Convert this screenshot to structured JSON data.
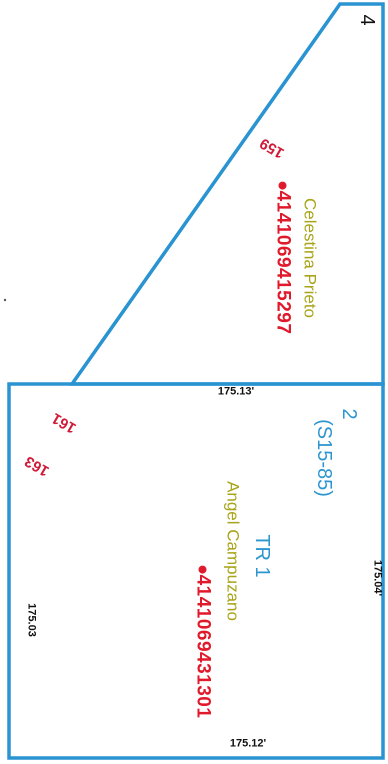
{
  "colors": {
    "boundary": "#2a93d1",
    "owner_text": "#a8a419",
    "parcel_text": "#e0192b",
    "tract_text": "#2d96d0",
    "dimension_text": "#111111"
  },
  "top_parcel": {
    "lot_number": "4",
    "owner": "Celestina Prieto",
    "parcel_id": "4141069415297",
    "lot_label": "159"
  },
  "bottom_parcel": {
    "tract_name": "TR 1",
    "tract_sub_1": "2",
    "tract_sub_2": "(S15-85)",
    "owner": "Angel Campuzano",
    "parcel_id": "4141069431301",
    "lot_labels": [
      "161",
      "163"
    ],
    "dimensions": {
      "top": "175.13'",
      "bottom": "175.12'",
      "left": "175.03",
      "right": "175.04'"
    }
  }
}
